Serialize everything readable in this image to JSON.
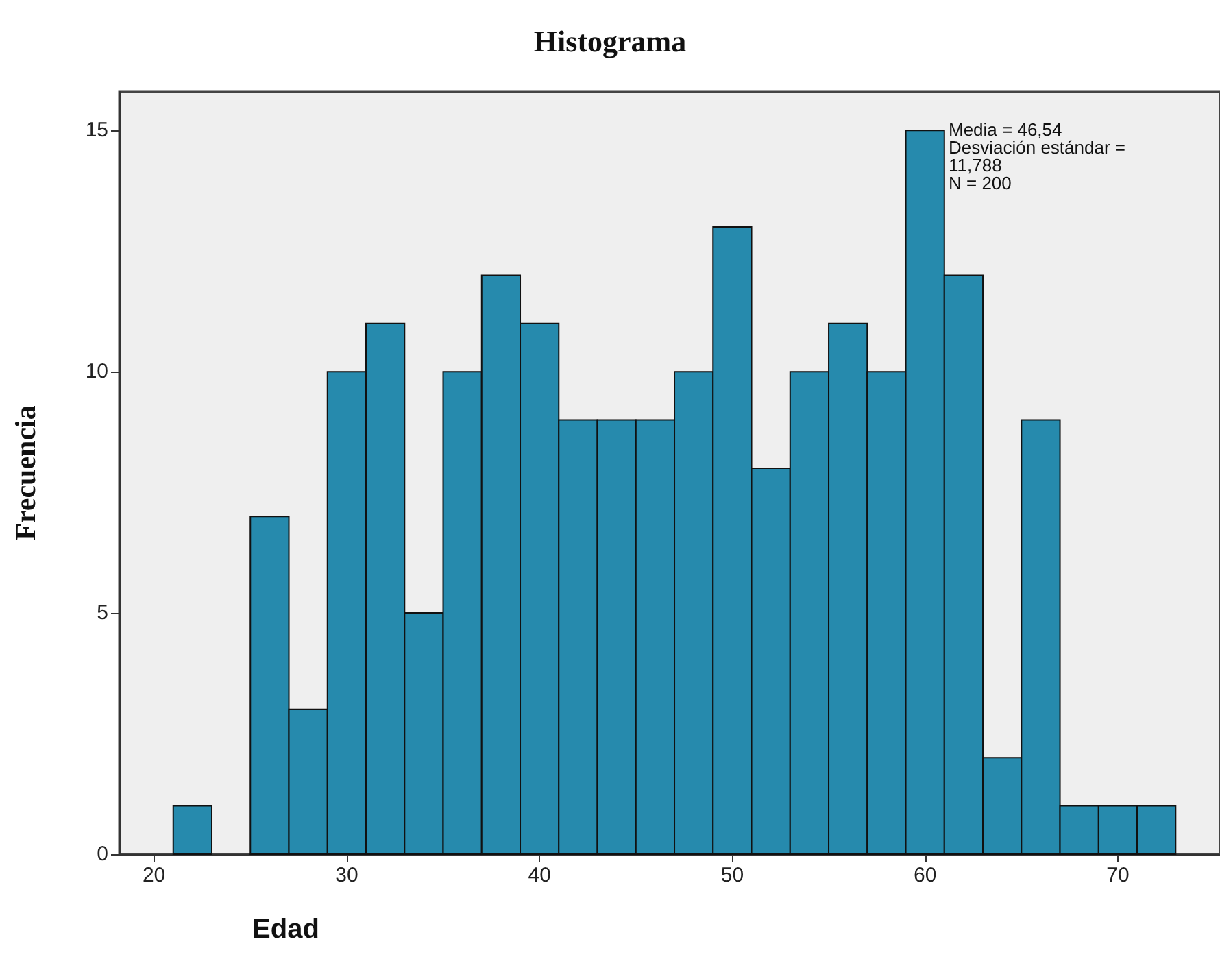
{
  "chart_data": {
    "type": "histogram",
    "title": "Histograma",
    "xlabel": "Edad",
    "ylabel": "Frecuencia",
    "bins": [
      21,
      23,
      25,
      27,
      29,
      31,
      33,
      35,
      37,
      39,
      41,
      43,
      45,
      47,
      49,
      51,
      53,
      55,
      57,
      59,
      61,
      63,
      65,
      67,
      69,
      71,
      73
    ],
    "values": [
      1,
      0,
      7,
      3,
      10,
      11,
      5,
      10,
      12,
      11,
      9,
      9,
      9,
      10,
      13,
      8,
      10,
      11,
      10,
      15,
      12,
      2,
      9,
      1,
      1,
      1
    ],
    "color": "#268aad",
    "xlim": [
      18.2,
      75.3
    ],
    "xticks": [
      20,
      30,
      40,
      50,
      60,
      70
    ],
    "ylim": [
      0,
      15.8
    ],
    "yticks": [
      0,
      5,
      10,
      15
    ],
    "grid": false,
    "annotations": [
      "Media = 46,54",
      "Desviación estándar =",
      "11,788",
      "N = 200"
    ]
  }
}
